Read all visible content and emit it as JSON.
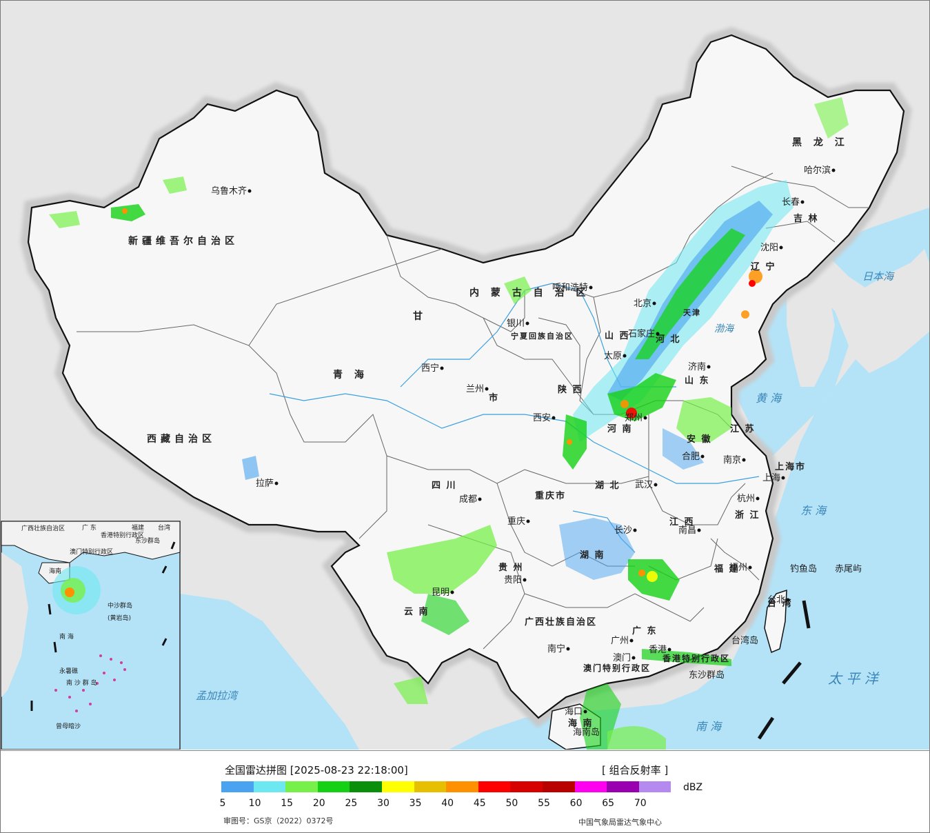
{
  "map": {
    "province_labels": [
      {
        "id": "xinjiang",
        "text": "新疆维吾尔自治区"
      },
      {
        "id": "xizang",
        "text": "西藏自治区"
      },
      {
        "id": "qinghai",
        "text": "青 海"
      },
      {
        "id": "gansu",
        "text": "甘"
      },
      {
        "id": "neimenggu",
        "text": "内 蒙 古 自 治 区"
      },
      {
        "id": "heilongjiang",
        "text": "黑 龙 江"
      },
      {
        "id": "jilin",
        "text": "吉 林"
      },
      {
        "id": "liaoning",
        "text": "辽 宁"
      },
      {
        "id": "hebei",
        "text": "河 北"
      },
      {
        "id": "shanxi",
        "text": "山 西"
      },
      {
        "id": "shandong",
        "text": "山 东"
      },
      {
        "id": "henan",
        "text": "河 南"
      },
      {
        "id": "shaanxi",
        "text": "陕 西"
      },
      {
        "id": "ningxia",
        "text": "宁夏回族自治区"
      },
      {
        "id": "sichuan",
        "text": "四 川"
      },
      {
        "id": "chongqing",
        "text": "重庆市"
      },
      {
        "id": "hubei",
        "text": "湖 北"
      },
      {
        "id": "hunan",
        "text": "湖 南"
      },
      {
        "id": "anhui",
        "text": "安 徽"
      },
      {
        "id": "jiangsu",
        "text": "江 苏"
      },
      {
        "id": "shanghai",
        "text": "上海市"
      },
      {
        "id": "zhejiang",
        "text": "浙 江"
      },
      {
        "id": "jiangxi",
        "text": "江 西"
      },
      {
        "id": "fujian",
        "text": "福 建"
      },
      {
        "id": "guizhou",
        "text": "贵 州"
      },
      {
        "id": "yunnan",
        "text": "云 南"
      },
      {
        "id": "guangxi",
        "text": "广西壮族自治区"
      },
      {
        "id": "guangdong",
        "text": "广 东"
      },
      {
        "id": "taiwan",
        "text": "台 湾"
      },
      {
        "id": "hainan",
        "text": "海 南"
      },
      {
        "id": "xianggang",
        "text": "香港特别行政区"
      },
      {
        "id": "aomen",
        "text": "澳门特别行政区"
      },
      {
        "id": "tianjin",
        "text": "天津"
      },
      {
        "id": "gansu_shi",
        "text": "市"
      }
    ],
    "cities": [
      {
        "id": "urumqi",
        "text": "乌鲁木齐"
      },
      {
        "id": "lhasa",
        "text": "拉萨"
      },
      {
        "id": "xining",
        "text": "西宁"
      },
      {
        "id": "lanzhou",
        "text": "兰州"
      },
      {
        "id": "yinchuan",
        "text": "银川"
      },
      {
        "id": "hohhot",
        "text": "呼和浩特"
      },
      {
        "id": "harbin",
        "text": "哈尔滨"
      },
      {
        "id": "changchun",
        "text": "长春"
      },
      {
        "id": "shenyang",
        "text": "沈阳"
      },
      {
        "id": "beijing",
        "text": "北京"
      },
      {
        "id": "shijiazhuang",
        "text": "石家庄"
      },
      {
        "id": "taiyuan",
        "text": "太原"
      },
      {
        "id": "jinan",
        "text": "济南"
      },
      {
        "id": "zhengzhou",
        "text": "郑州"
      },
      {
        "id": "xian",
        "text": "西安"
      },
      {
        "id": "chengdu",
        "text": "成都"
      },
      {
        "id": "chongqing_c",
        "text": "重庆"
      },
      {
        "id": "wuhan",
        "text": "武汉"
      },
      {
        "id": "hefei",
        "text": "合肥"
      },
      {
        "id": "nanjing",
        "text": "南京"
      },
      {
        "id": "shanghai_c",
        "text": "上海"
      },
      {
        "id": "hangzhou",
        "text": "杭州"
      },
      {
        "id": "nanchang",
        "text": "南昌"
      },
      {
        "id": "changsha",
        "text": "长沙"
      },
      {
        "id": "fuzhou",
        "text": "福州"
      },
      {
        "id": "guiyang",
        "text": "贵阳"
      },
      {
        "id": "kunming",
        "text": "昆明"
      },
      {
        "id": "nanning",
        "text": "南宁"
      },
      {
        "id": "guangzhou",
        "text": "广州"
      },
      {
        "id": "hongkong",
        "text": "香港"
      },
      {
        "id": "macau",
        "text": "澳门"
      },
      {
        "id": "haikou",
        "text": "海口"
      },
      {
        "id": "taibei",
        "text": "台北"
      }
    ],
    "sea_labels": [
      {
        "id": "japan_sea",
        "text": "日本海"
      },
      {
        "id": "bohai",
        "text": "渤海"
      },
      {
        "id": "yellow_sea",
        "text": "黄 海"
      },
      {
        "id": "east_sea",
        "text": "东 海"
      },
      {
        "id": "pacific",
        "text": "太 平 洋"
      },
      {
        "id": "south_sea",
        "text": "南 海"
      },
      {
        "id": "bengal",
        "text": "孟加拉湾"
      }
    ],
    "island_labels": [
      {
        "id": "diaoyu",
        "text": "钓鱼岛"
      },
      {
        "id": "chiwei",
        "text": "赤尾屿"
      },
      {
        "id": "taiwan_island",
        "text": "台湾岛"
      },
      {
        "id": "dongsha",
        "text": "东沙群岛"
      },
      {
        "id": "hainan_island",
        "text": "海南岛"
      }
    ],
    "inset_labels": [
      {
        "id": "in_guangxi",
        "text": "广西壮族自治区"
      },
      {
        "id": "in_guangdong",
        "text": "广 东"
      },
      {
        "id": "in_fujian",
        "text": "福建"
      },
      {
        "id": "in_taiwan",
        "text": "台湾"
      },
      {
        "id": "in_hk",
        "text": "香港特别行政区"
      },
      {
        "id": "in_macau",
        "text": "澳门特别行政区"
      },
      {
        "id": "in_dongsha",
        "text": "东沙群岛"
      },
      {
        "id": "in_hainan",
        "text": "海南"
      },
      {
        "id": "in_zhongsha",
        "text": "中沙群岛"
      },
      {
        "id": "in_huangyan",
        "text": "(黄岩岛)"
      },
      {
        "id": "in_southsea",
        "text": "南 海"
      },
      {
        "id": "in_yongshu",
        "text": "永暑礁"
      },
      {
        "id": "in_nansha",
        "text": "南 沙 群 岛"
      },
      {
        "id": "in_zengmu",
        "text": "曾母暗沙"
      }
    ]
  },
  "legend": {
    "title": "全国雷达拼图 [2025-08-23 22:18:00]",
    "product": "[ 组合反射率 ]",
    "unit": "dBZ",
    "colors": [
      "#4aa3f0",
      "#6ee8f0",
      "#77f04a",
      "#15d115",
      "#0a8f0a",
      "#ffff00",
      "#e6c000",
      "#ff9000",
      "#ff0000",
      "#d60000",
      "#b80000",
      "#ff00f0",
      "#9800b0",
      "#b48af0"
    ],
    "ticks": [
      "5",
      "10",
      "15",
      "20",
      "25",
      "30",
      "35",
      "40",
      "45",
      "50",
      "55",
      "60",
      "65",
      "70"
    ],
    "review_no": "审图号：GS京（2022）0372号",
    "credit": "中国气象局雷达气象中心"
  }
}
